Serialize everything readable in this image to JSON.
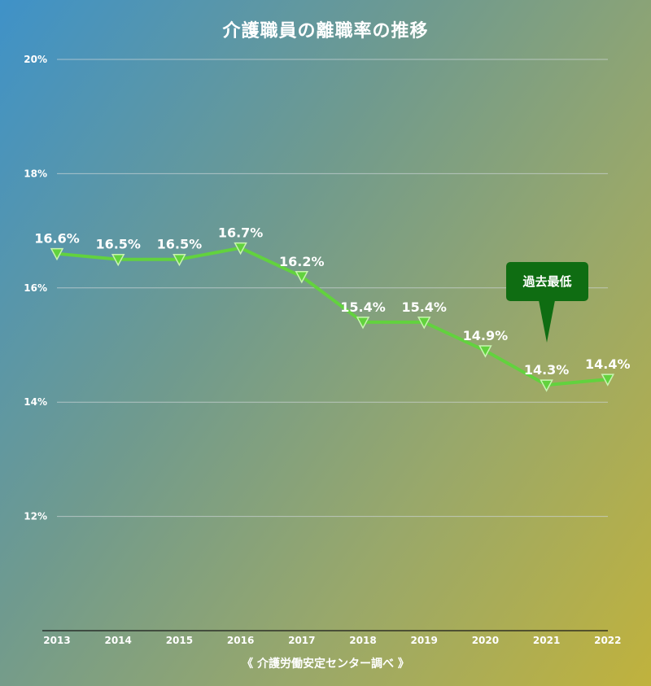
{
  "chart_data": {
    "type": "line",
    "title": "介護職員の離職率の推移",
    "source": "《 介護労働安定センター調べ 》",
    "categories": [
      "2013",
      "2014",
      "2015",
      "2016",
      "2017",
      "2018",
      "2019",
      "2020",
      "2021",
      "2022"
    ],
    "values": [
      16.6,
      16.5,
      16.5,
      16.7,
      16.2,
      15.4,
      15.4,
      14.9,
      14.3,
      14.4
    ],
    "data_labels": [
      "16.6%",
      "16.5%",
      "16.5%",
      "16.7%",
      "16.2%",
      "15.4%",
      "15.4%",
      "14.9%",
      "14.3%",
      "14.4%"
    ],
    "yticks": [
      {
        "value": 20,
        "label": "20%"
      },
      {
        "value": 18,
        "label": "18%"
      },
      {
        "value": 16,
        "label": "16%"
      },
      {
        "value": 14,
        "label": "14%"
      },
      {
        "value": 12,
        "label": "12%"
      }
    ],
    "ylim": [
      10,
      20
    ],
    "grid": true,
    "annotation": {
      "text": "過去最低",
      "category": "2021"
    },
    "colors": {
      "line": "#62d23e",
      "marker_fill": "#62d23e",
      "marker_stroke": "#c8f5b0",
      "callout": "#0f6d12",
      "text": "#ffffff",
      "grid": "#cfd6d8",
      "axis": "#1a1a1a"
    }
  }
}
